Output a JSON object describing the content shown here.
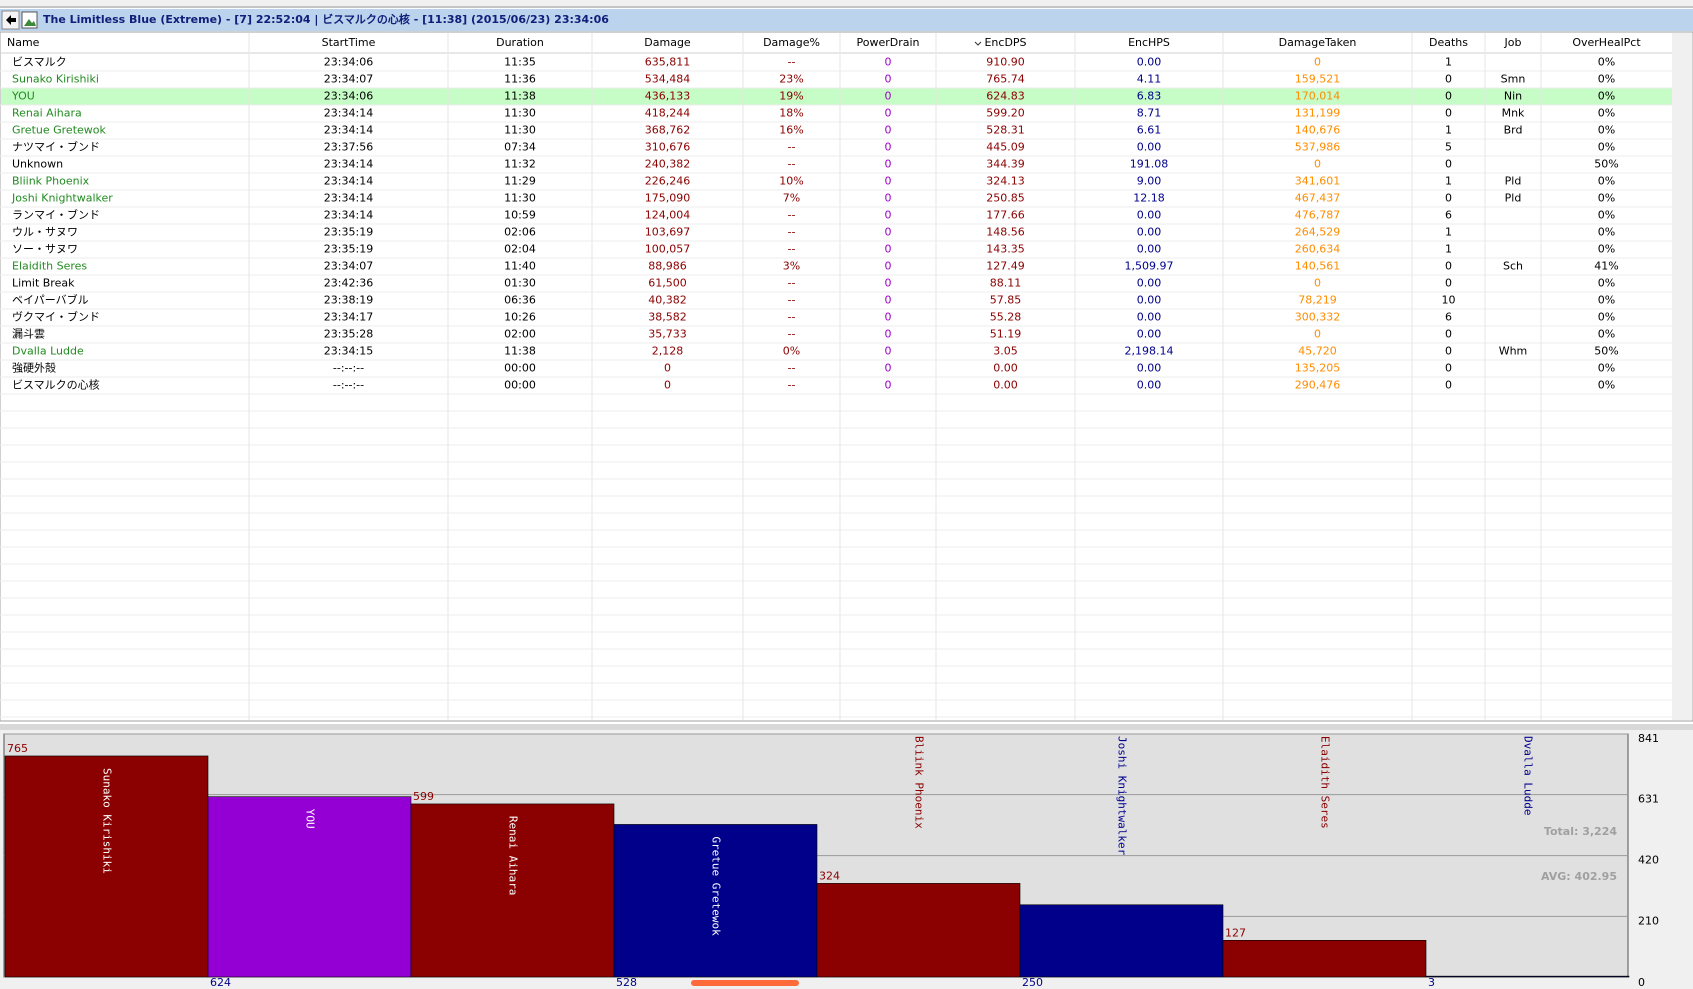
{
  "header": {
    "title": "The Limitless Blue (Extreme) - [7] 22:52:04 | ビスマルクの心核 - [11:38] (2015/06/23) 23:34:06"
  },
  "table": {
    "columns": [
      "Name",
      "StartTime",
      "Duration",
      "Damage",
      "Damage%",
      "PowerDrain",
      "EncDPS",
      "EncHPS",
      "DamageTaken",
      "Deaths",
      "Job",
      "OverHealPct"
    ],
    "column_colors": [
      "#000000",
      "#000000",
      "#000000",
      "#8b0000",
      "#8b0000",
      "#a000c8",
      "#8b0000",
      "#00008b",
      "#ff8c00",
      "#000000",
      "#000000",
      "#000000"
    ],
    "player_color": "#228b22",
    "highlight_color": "#c6fcc6",
    "rows": [
      {
        "cells": [
          "ビスマルク",
          "23:34:06",
          "11:35",
          "635,811",
          "--",
          "0",
          "910.90",
          "0.00",
          "0",
          "1",
          null,
          "0%"
        ]
      },
      {
        "cells": [
          "Sunako Kirishiki",
          "23:34:07",
          "11:36",
          "534,484",
          "23%",
          "0",
          "765.74",
          "4.11",
          "159,521",
          "0",
          "Smn",
          "0%"
        ],
        "player": true
      },
      {
        "cells": [
          "YOU",
          "23:34:06",
          "11:38",
          "436,133",
          "19%",
          "0",
          "624.83",
          "6.83",
          "170,014",
          "0",
          "Nin",
          "0%"
        ],
        "player": true,
        "highlight": true
      },
      {
        "cells": [
          "Renai Aihara",
          "23:34:14",
          "11:30",
          "418,244",
          "18%",
          "0",
          "599.20",
          "8.71",
          "131,199",
          "0",
          "Mnk",
          "0%"
        ],
        "player": true
      },
      {
        "cells": [
          "Gretue Gretewok",
          "23:34:14",
          "11:30",
          "368,762",
          "16%",
          "0",
          "528.31",
          "6.61",
          "140,676",
          "1",
          "Brd",
          "0%"
        ],
        "player": true
      },
      {
        "cells": [
          "ナツマイ・ブンド",
          "23:37:56",
          "07:34",
          "310,676",
          "--",
          "0",
          "445.09",
          "0.00",
          "537,986",
          "5",
          null,
          "0%"
        ]
      },
      {
        "cells": [
          "Unknown",
          "23:34:14",
          "11:32",
          "240,382",
          "--",
          "0",
          "344.39",
          "191.08",
          "0",
          "0",
          null,
          "50%"
        ]
      },
      {
        "cells": [
          "Bliink Phoenix",
          "23:34:14",
          "11:29",
          "226,246",
          "10%",
          "0",
          "324.13",
          "9.00",
          "341,601",
          "1",
          "Pld",
          "0%"
        ],
        "player": true
      },
      {
        "cells": [
          "Joshi Knightwalker",
          "23:34:14",
          "11:30",
          "175,090",
          "7%",
          "0",
          "250.85",
          "12.18",
          "467,437",
          "0",
          "Pld",
          "0%"
        ],
        "player": true
      },
      {
        "cells": [
          "ランマイ・ブンド",
          "23:34:14",
          "10:59",
          "124,004",
          "--",
          "0",
          "177.66",
          "0.00",
          "476,787",
          "6",
          null,
          "0%"
        ]
      },
      {
        "cells": [
          "ウル・サヌワ",
          "23:35:19",
          "02:06",
          "103,697",
          "--",
          "0",
          "148.56",
          "0.00",
          "264,529",
          "1",
          null,
          "0%"
        ]
      },
      {
        "cells": [
          "ソー・サヌワ",
          "23:35:19",
          "02:04",
          "100,057",
          "--",
          "0",
          "143.35",
          "0.00",
          "260,634",
          "1",
          null,
          "0%"
        ]
      },
      {
        "cells": [
          "Elaidith Seres",
          "23:34:07",
          "11:40",
          "88,986",
          "3%",
          "0",
          "127.49",
          "1,509.97",
          "140,561",
          "0",
          "Sch",
          "41%"
        ],
        "player": true
      },
      {
        "cells": [
          "Limit Break",
          "23:42:36",
          "01:30",
          "61,500",
          "--",
          "0",
          "88.11",
          "0.00",
          "0",
          "0",
          null,
          "0%"
        ]
      },
      {
        "cells": [
          "ベイパーバブル",
          "23:38:19",
          "06:36",
          "40,382",
          "--",
          "0",
          "57.85",
          "0.00",
          "78,219",
          "10",
          null,
          "0%"
        ]
      },
      {
        "cells": [
          "ヴクマイ・ブンド",
          "23:34:17",
          "10:26",
          "38,582",
          "--",
          "0",
          "55.28",
          "0.00",
          "300,332",
          "6",
          null,
          "0%"
        ]
      },
      {
        "cells": [
          "漏斗雲",
          "23:35:28",
          "02:00",
          "35,733",
          "--",
          "0",
          "51.19",
          "0.00",
          "0",
          "0",
          null,
          "0%"
        ]
      },
      {
        "cells": [
          "Dvalla Ludde",
          "23:34:15",
          "11:38",
          "2,128",
          "0%",
          "0",
          "3.05",
          "2,198.14",
          "45,720",
          "0",
          "Whm",
          "50%"
        ],
        "player": true
      },
      {
        "cells": [
          "強硬外殻",
          "--:--:--",
          "00:00",
          "0",
          "--",
          "0",
          "0.00",
          "0.00",
          "135,205",
          "0",
          null,
          "0%"
        ]
      },
      {
        "cells": [
          "ビスマルクの心核",
          "--:--:--",
          "00:00",
          "0",
          "--",
          "0",
          "0.00",
          "0.00",
          "290,476",
          "0",
          null,
          "0%"
        ]
      }
    ]
  },
  "chart_data": {
    "type": "bar",
    "categories": [
      "Sunako Kirishiki",
      "YOU",
      "Renai Aihara",
      "Gretue Gretewok",
      "Bliink Phoenix",
      "Joshi Knightwalker",
      "Elaidith Seres",
      "Dvalla Ludde"
    ],
    "values": [
      765,
      624,
      599,
      528,
      324,
      250,
      127,
      3
    ],
    "colors": [
      "#8b0000",
      "#9400d3",
      "#8b0000",
      "#00008b",
      "#8b0000",
      "#00008b",
      "#8b0000",
      "#00008b"
    ],
    "ylim": [
      0,
      841
    ],
    "yticks": [
      0,
      210,
      420,
      631,
      841
    ],
    "grid": true,
    "annotations": [
      "Total: 3,224",
      "AVG: 402.95"
    ]
  }
}
